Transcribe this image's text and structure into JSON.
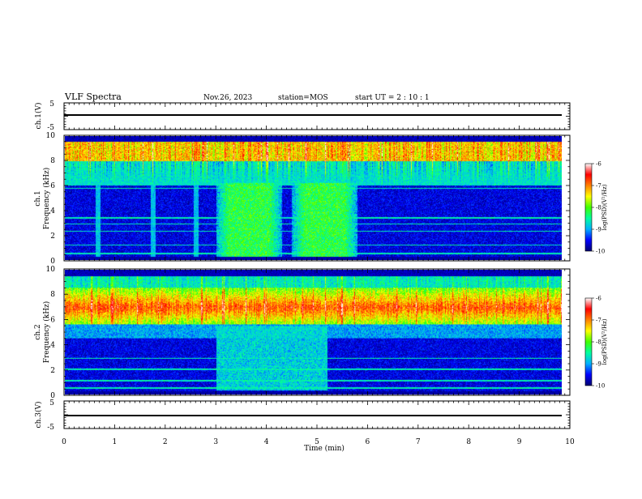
{
  "header": {
    "title": "VLF Spectra",
    "date": "Nov.26, 2023",
    "station": "station=MOS",
    "start_ut": "start UT =  2 : 10 : 1"
  },
  "chart_data": [
    {
      "type": "line",
      "panel": "ch1-waveform",
      "ylabel": "ch.1(V)",
      "ylim": [
        -5,
        5
      ],
      "yticks": [
        "5",
        "-5"
      ],
      "series": [
        {
          "x": [
            0,
            9.85
          ],
          "y": [
            -1,
            -1
          ]
        }
      ]
    },
    {
      "type": "heatmap",
      "panel": "ch1-spectrogram",
      "ylabel": "ch.1\nFrequency (kHz)",
      "ylim": [
        0,
        10
      ],
      "yticks": [
        "0",
        "2",
        "4",
        "6",
        "8",
        "10"
      ],
      "xlim": [
        0,
        9.85
      ],
      "features": {
        "background_level": -9.6,
        "high_band_khz": [
          8,
          10
        ],
        "high_band_level": -7.3,
        "burst_windows_min": [
          [
            3.0,
            4.3
          ],
          [
            4.5,
            5.8
          ]
        ],
        "burst_level": -8.2,
        "weak_columns_min": [
          0.65,
          1.75,
          2.6
        ],
        "spike_lines_khz": [
          0.5,
          1.2,
          2.3,
          2.9,
          3.4,
          5.8
        ]
      }
    },
    {
      "type": "heatmap",
      "panel": "ch2-spectrogram",
      "ylabel": "ch.2\nFrequency (kHz)",
      "ylim": [
        0,
        10
      ],
      "yticks": [
        "0",
        "2",
        "4",
        "6",
        "8",
        "10"
      ],
      "xlim": [
        0,
        9.85
      ],
      "features": {
        "background_level": -9.6,
        "main_band_khz": [
          5.6,
          8.6
        ],
        "main_band_level": -6.8,
        "burst_windows_min": [
          [
            3.0,
            5.2
          ]
        ],
        "burst_level": -8.8,
        "spike_lines_khz": [
          0.5,
          1.1,
          2.0,
          2.9
        ]
      }
    },
    {
      "type": "line",
      "panel": "ch3-waveform",
      "ylabel": "ch.3(V)",
      "ylim": [
        -5,
        5
      ],
      "yticks": [
        "5",
        "-5"
      ],
      "series": [
        {
          "x": [
            0,
            9.85
          ],
          "y": [
            -1,
            -1
          ]
        }
      ]
    }
  ],
  "xaxis": {
    "label": "Time (min)",
    "range": [
      0,
      10
    ],
    "ticks": [
      "0",
      "1",
      "2",
      "3",
      "4",
      "5",
      "6",
      "7",
      "8",
      "9",
      "10"
    ]
  },
  "colorbar": {
    "label": "log(PSD)(V²/Hz)",
    "range": [
      -10,
      -6
    ],
    "ticks": [
      "-6",
      "-7",
      "-8",
      "-9",
      "-10"
    ],
    "colors": [
      "#000070",
      "#0000ff",
      "#00b0ff",
      "#00ffa0",
      "#40ff00",
      "#ffff00",
      "#ff8000",
      "#ff0000",
      "#ffffff"
    ]
  }
}
